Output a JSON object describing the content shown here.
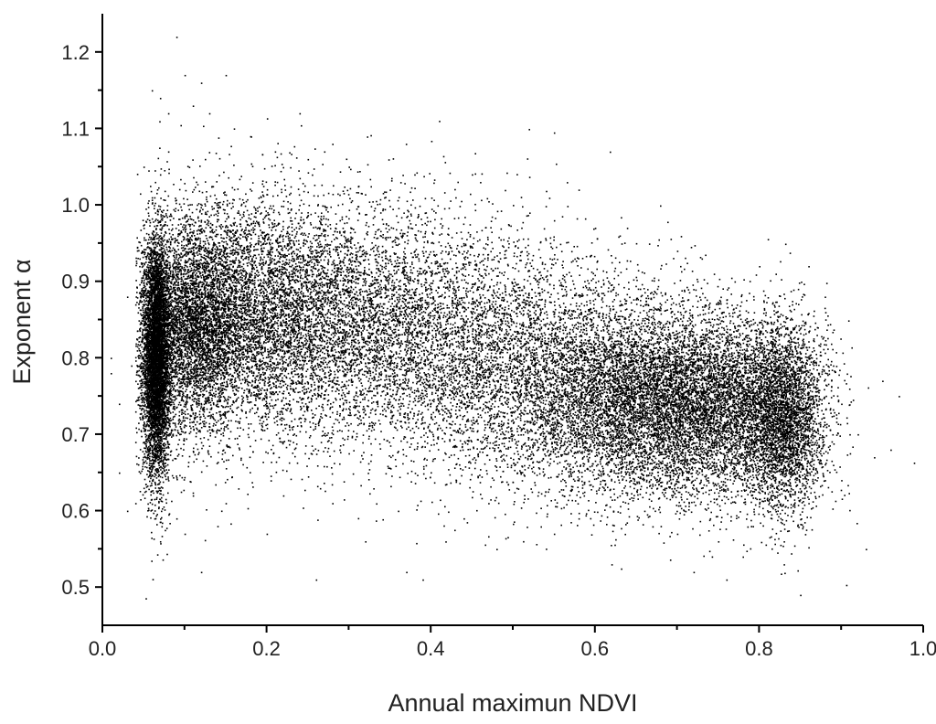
{
  "chart_data": {
    "type": "scatter",
    "title": "",
    "xlabel": "Annual maximun NDVI",
    "ylabel": "Exponent α",
    "xlim": [
      0.0,
      1.0
    ],
    "ylim": [
      0.45,
      1.25
    ],
    "grid": false,
    "x_ticks": [
      "0.0",
      "0.2",
      "0.4",
      "0.6",
      "0.8",
      "1.0"
    ],
    "y_ticks": [
      "0.5",
      "0.6",
      "0.7",
      "0.8",
      "0.9",
      "1.0",
      "1.1",
      "1.2"
    ],
    "marker_color": "#000000",
    "series": [
      {
        "points": [
          [
            0.09,
            1.22
          ],
          [
            0.1,
            1.17
          ],
          [
            0.12,
            1.16
          ],
          [
            0.15,
            1.17
          ],
          [
            0.06,
            1.15
          ],
          [
            0.07,
            1.14
          ],
          [
            0.08,
            1.12
          ],
          [
            0.11,
            1.13
          ],
          [
            0.13,
            1.12
          ],
          [
            0.16,
            1.1
          ],
          [
            0.24,
            1.12
          ],
          [
            0.25,
            1.06
          ],
          [
            0.27,
            1.07
          ],
          [
            0.28,
            1.08
          ],
          [
            0.3,
            1.05
          ],
          [
            0.41,
            1.11
          ],
          [
            0.45,
            1.04
          ],
          [
            0.46,
            1.03
          ],
          [
            0.5,
            1.0
          ],
          [
            0.55,
            0.98
          ],
          [
            0.58,
            1.02
          ],
          [
            0.6,
            0.97
          ],
          [
            0.65,
            0.95
          ],
          [
            0.7,
            0.94
          ],
          [
            0.8,
            0.92
          ],
          [
            0.82,
            0.91
          ],
          [
            0.86,
            0.92
          ],
          [
            0.88,
            0.88
          ],
          [
            0.01,
            0.8
          ],
          [
            0.01,
            0.78
          ],
          [
            0.02,
            0.74
          ],
          [
            0.02,
            0.65
          ],
          [
            0.03,
            0.6
          ],
          [
            0.04,
            0.61
          ],
          [
            0.03,
            0.88
          ],
          [
            0.95,
            0.77
          ],
          [
            0.97,
            0.75
          ],
          [
            0.96,
            0.68
          ],
          [
            0.94,
            0.67
          ],
          [
            0.92,
            0.7
          ],
          [
            0.9,
            0.64
          ],
          [
            0.93,
            0.55
          ],
          [
            0.85,
            0.49
          ],
          [
            0.83,
            0.53
          ],
          [
            0.78,
            0.54
          ],
          [
            0.75,
            0.56
          ],
          [
            0.72,
            0.52
          ],
          [
            0.68,
            0.58
          ],
          [
            0.62,
            0.53
          ],
          [
            0.55,
            0.57
          ],
          [
            0.48,
            0.55
          ],
          [
            0.39,
            0.51
          ],
          [
            0.37,
            0.52
          ],
          [
            0.26,
            0.51
          ],
          [
            0.12,
            0.52
          ],
          [
            0.1,
            0.57
          ],
          [
            0.09,
            0.59
          ],
          [
            0.14,
            0.58
          ],
          [
            0.2,
            0.57
          ],
          [
            0.32,
            0.56
          ],
          [
            0.44,
            0.59
          ],
          [
            0.58,
            0.59
          ],
          [
            0.66,
            0.6
          ],
          [
            0.8,
            0.63
          ],
          [
            0.88,
            0.64
          ],
          [
            0.83,
            0.56
          ],
          [
            0.76,
            0.51
          ],
          [
            0.7,
            0.57
          ],
          [
            0.07,
            0.56
          ],
          [
            0.05,
            0.63
          ],
          [
            0.04,
            0.69
          ],
          [
            0.04,
            0.73
          ],
          [
            0.035,
            0.79
          ],
          [
            0.04,
            0.87
          ],
          [
            0.045,
            0.93
          ],
          [
            0.05,
            0.97
          ],
          [
            0.06,
            1.01
          ],
          [
            0.07,
            1.04
          ],
          [
            0.08,
            1.07
          ],
          [
            0.05,
            1.05
          ],
          [
            0.18,
            1.09
          ],
          [
            0.21,
            1.07
          ],
          [
            0.35,
            1.02
          ],
          [
            0.38,
            1.04
          ],
          [
            0.43,
            1.01
          ],
          [
            0.52,
            0.99
          ],
          [
            0.63,
            0.96
          ],
          [
            0.73,
            0.93
          ],
          [
            0.77,
            0.9
          ],
          [
            0.84,
            0.87
          ],
          [
            0.87,
            0.83
          ],
          [
            0.89,
            0.79
          ],
          [
            0.9,
            0.74
          ],
          [
            0.91,
            0.7
          ],
          [
            0.89,
            0.66
          ],
          [
            0.86,
            0.61
          ],
          [
            0.79,
            0.58
          ],
          [
            0.74,
            0.59
          ],
          [
            0.64,
            0.61
          ],
          [
            0.53,
            0.62
          ],
          [
            0.47,
            0.61
          ],
          [
            0.36,
            0.6
          ],
          [
            0.28,
            0.61
          ],
          [
            0.22,
            0.62
          ],
          [
            0.15,
            0.61
          ],
          [
            0.11,
            0.62
          ],
          [
            0.08,
            0.64
          ],
          [
            0.06,
            0.66
          ]
        ]
      }
    ],
    "density_regions": [
      {
        "cx": 0.065,
        "cy": 0.8,
        "sx": 0.008,
        "sy": 0.075,
        "weight": 5500
      },
      {
        "cx": 0.11,
        "cy": 0.84,
        "sx": 0.035,
        "sy": 0.07,
        "weight": 5000
      },
      {
        "cx": 0.2,
        "cy": 0.86,
        "sx": 0.06,
        "sy": 0.075,
        "weight": 4500
      },
      {
        "cx": 0.33,
        "cy": 0.84,
        "sx": 0.07,
        "sy": 0.08,
        "weight": 3500
      },
      {
        "cx": 0.48,
        "cy": 0.8,
        "sx": 0.07,
        "sy": 0.08,
        "weight": 3200
      },
      {
        "cx": 0.62,
        "cy": 0.75,
        "sx": 0.06,
        "sy": 0.065,
        "weight": 4500
      },
      {
        "cx": 0.74,
        "cy": 0.74,
        "sx": 0.06,
        "sy": 0.06,
        "weight": 6000
      },
      {
        "cx": 0.83,
        "cy": 0.72,
        "sx": 0.025,
        "sy": 0.06,
        "weight": 3000
      }
    ]
  }
}
